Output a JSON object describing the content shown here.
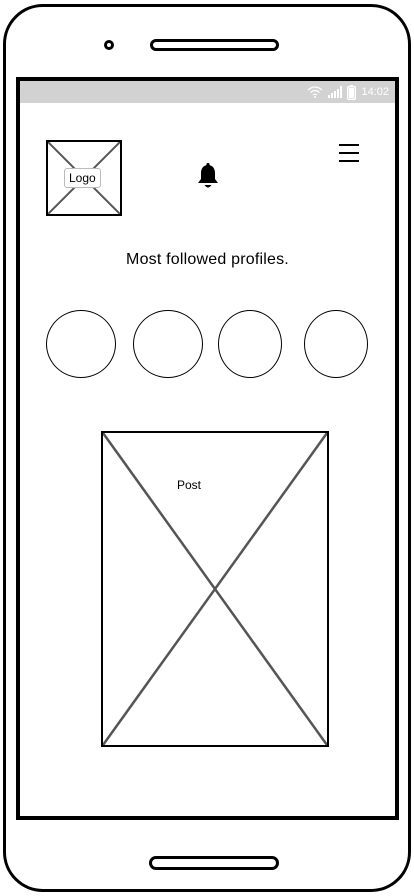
{
  "status_bar": {
    "time": "14:02",
    "icons": [
      "wifi-icon",
      "signal-icon",
      "battery-icon"
    ]
  },
  "header": {
    "logo_label": "Logo",
    "notification_icon": "bell-icon",
    "menu_icon": "hamburger-menu-icon"
  },
  "profiles": {
    "title": "Most followed profiles.",
    "count": 4
  },
  "post": {
    "label": "Post"
  },
  "colors": {
    "status_bar_bg": "#d2d2d2",
    "outline": "#000000",
    "placeholder_cross": "#555555"
  }
}
